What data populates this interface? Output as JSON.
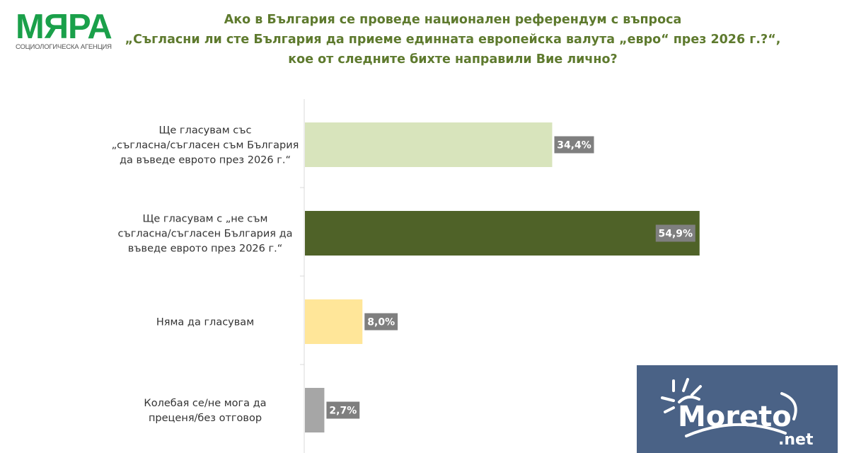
{
  "logo": {
    "name": "МЯРА",
    "subtitle": "СОЦИОЛОГИЧЕСКА АГЕНЦИЯ"
  },
  "watermark": {
    "text": "Moreto.net",
    "bg_color": "#4a6286"
  },
  "chart_data": {
    "type": "bar",
    "orientation": "horizontal",
    "title": [
      "Ако в България се проведе национален референдум с въпроса",
      "„Съгласни ли сте България да приеме единната европейска валута „евро“ през 2026 г.?“,",
      "кое от следните бихте направили Вие лично?"
    ],
    "categories": [
      [
        "Ще гласувам със",
        "„съгласна/съгласен съм България",
        "да въведе еврото през 2026 г.“"
      ],
      [
        "Ще гласувам с „не съм",
        "съгласна/съгласен България да",
        "въведе еврото през 2026 г.“"
      ],
      [
        "Няма да гласувам"
      ],
      [
        "Колебая се/не мога да",
        "преценя/без отговор"
      ]
    ],
    "values": [
      34.4,
      54.9,
      8.0,
      2.7
    ],
    "data_labels": [
      "34,4%",
      "54,9%",
      "8,0%",
      "2,7%"
    ],
    "colors": [
      "#d8e4bc",
      "#4f6228",
      "#ffe699",
      "#a6a6a6"
    ],
    "label_bg": "#7f7f7f",
    "unit": "%",
    "grid": false,
    "legend": "none"
  }
}
